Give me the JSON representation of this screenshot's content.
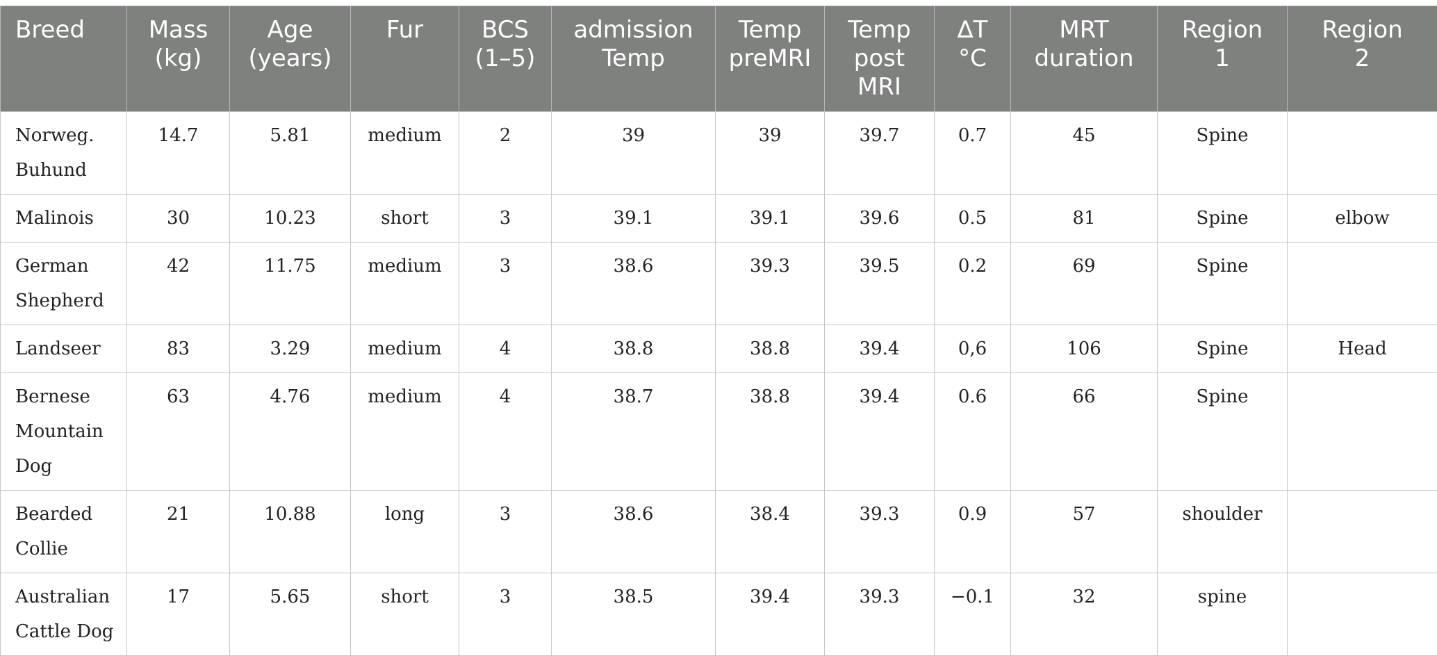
{
  "table": {
    "columns": [
      "Breed",
      "Mass\n(kg)",
      "Age\n(years)",
      "Fur",
      "BCS\n(1–5)",
      "admission\nTemp",
      "Temp\npreMRI",
      "Temp\npost\nMRI",
      "∆T\n°C",
      "MRT\nduration",
      "Region\n1",
      "Region\n2"
    ],
    "rows": [
      [
        "Norweg.\nBuhund",
        "14.7",
        "5.81",
        "medium",
        "2",
        "39",
        "39",
        "39.7",
        "0.7",
        "45",
        "Spine",
        ""
      ],
      [
        "Malinois",
        "30",
        "10.23",
        "short",
        "3",
        "39.1",
        "39.1",
        "39.6",
        "0.5",
        "81",
        "Spine",
        "elbow"
      ],
      [
        "German\nShepherd",
        "42",
        "11.75",
        "medium",
        "3",
        "38.6",
        "39.3",
        "39.5",
        "0.2",
        "69",
        "Spine",
        ""
      ],
      [
        "Landseer",
        "83",
        "3.29",
        "medium",
        "4",
        "38.8",
        "38.8",
        "39.4",
        "0,6",
        "106",
        "Spine",
        "Head"
      ],
      [
        "Bernese\nMountain\nDog",
        "63",
        "4.76",
        "medium",
        "4",
        "38.7",
        "38.8",
        "39.4",
        "0.6",
        "66",
        "Spine",
        ""
      ],
      [
        "Bearded\nCollie",
        "21",
        "10.88",
        "long",
        "3",
        "38.6",
        "38.4",
        "39.3",
        "0.9",
        "57",
        "shoulder",
        ""
      ],
      [
        "Australian\nCattle Dog",
        "17",
        "5.65",
        "short",
        "3",
        "38.5",
        "39.4",
        "39.3",
        "−0.1",
        "32",
        "spine",
        ""
      ]
    ]
  }
}
